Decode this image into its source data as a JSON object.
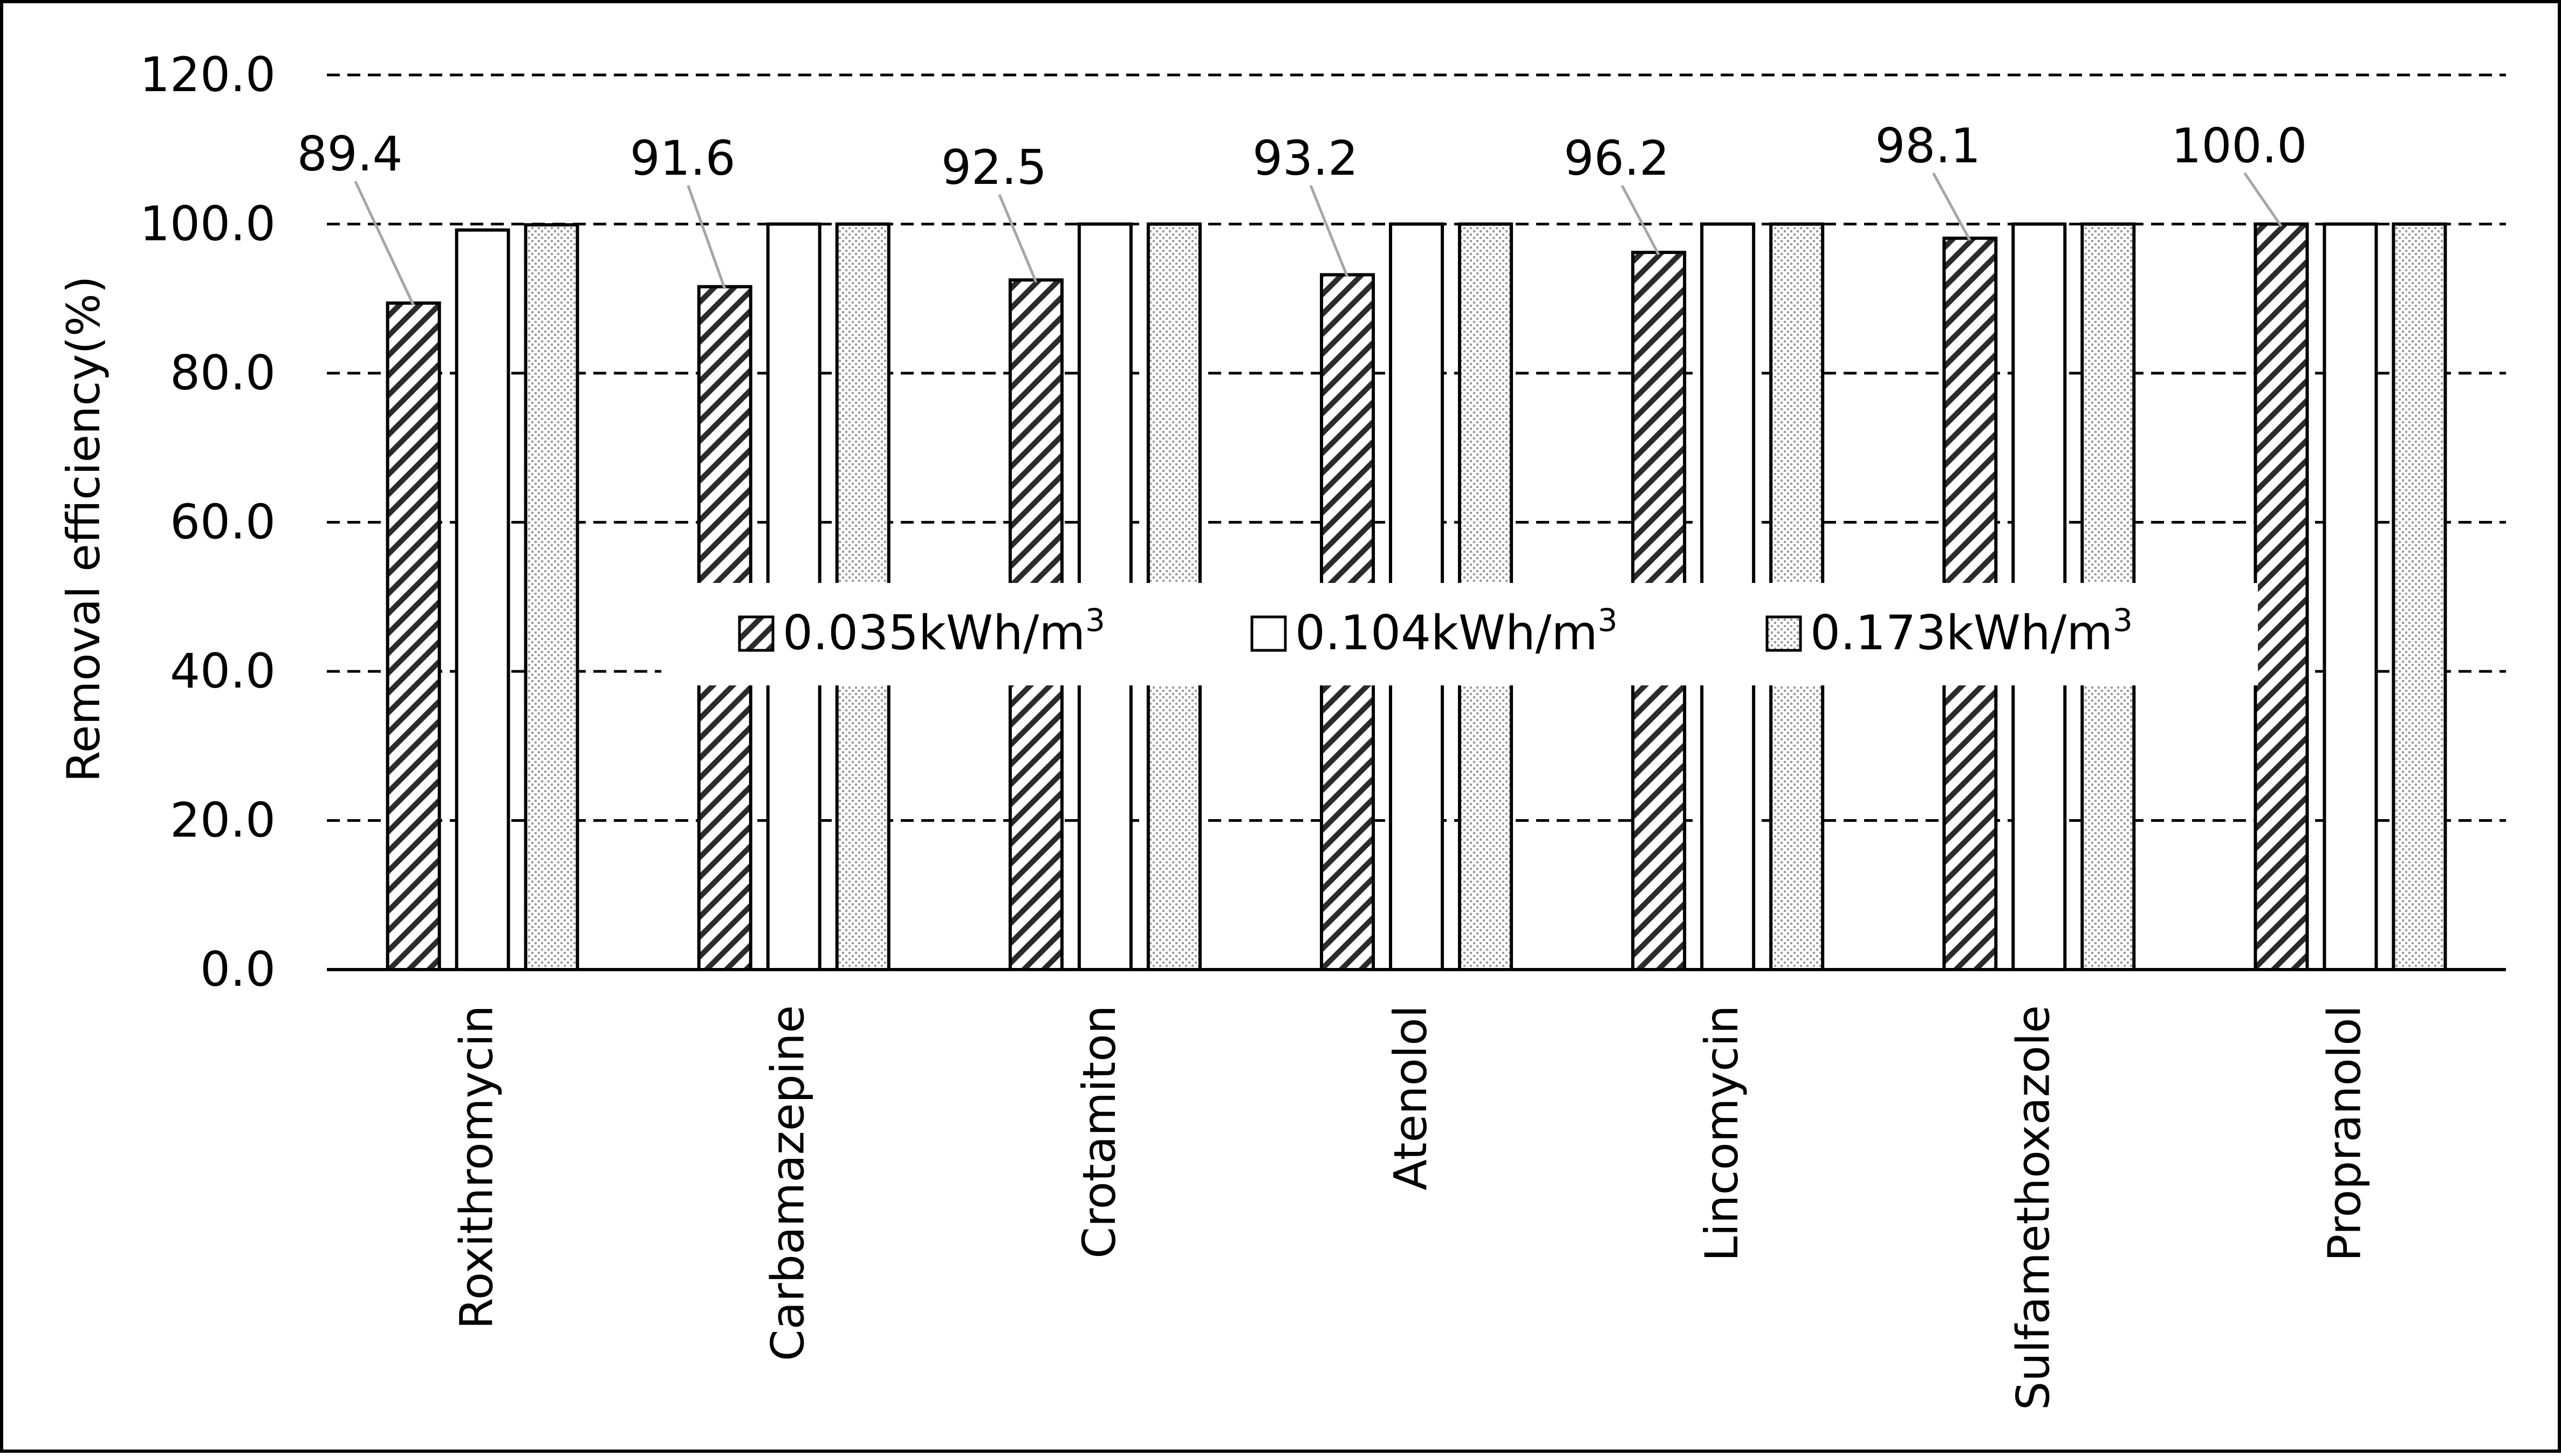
{
  "chart_data": {
    "type": "bar",
    "title": "",
    "xlabel": "",
    "ylabel": "Removal efficiency(%)",
    "ylim": [
      0,
      120
    ],
    "yticks": [
      0,
      20,
      40,
      60,
      80,
      100,
      120
    ],
    "ytick_labels": [
      "0.0",
      "20.0",
      "40.0",
      "60.0",
      "80.0",
      "100.0",
      "120.0"
    ],
    "grid": "horizontal dashed",
    "legend_placement": "center",
    "categories": [
      "Roxithromycin",
      "Carbamazepine",
      "Crotamiton",
      "Atenolol",
      "Lincomycin",
      "Sulfamethoxazole",
      "Propranolol"
    ],
    "series": [
      {
        "name": "0.035kWh/m3",
        "name_base": "0.035kWh/m",
        "name_sup": "3",
        "pattern": "diagonal-hatch",
        "values": [
          89.4,
          91.6,
          92.5,
          93.2,
          96.2,
          98.1,
          100.0
        ],
        "data_labels": [
          "89.4",
          "91.6",
          "92.5",
          "93.2",
          "96.2",
          "98.1",
          "100.0"
        ]
      },
      {
        "name": "0.104kWh/m3",
        "name_base": "0.104kWh/m",
        "name_sup": "3",
        "pattern": "solid-white",
        "values": [
          99.2,
          100.0,
          100.0,
          100.0,
          100.0,
          100.0,
          100.0
        ]
      },
      {
        "name": "0.173kWh/m3",
        "name_base": "0.173kWh/m",
        "name_sup": "3",
        "pattern": "dotted",
        "values": [
          99.9,
          100.0,
          100.0,
          100.0,
          100.0,
          100.0,
          100.0
        ]
      }
    ],
    "colors": {
      "bar_stroke": "#000000",
      "leader_line": "#a6a6a6",
      "grid": "#000000"
    }
  }
}
